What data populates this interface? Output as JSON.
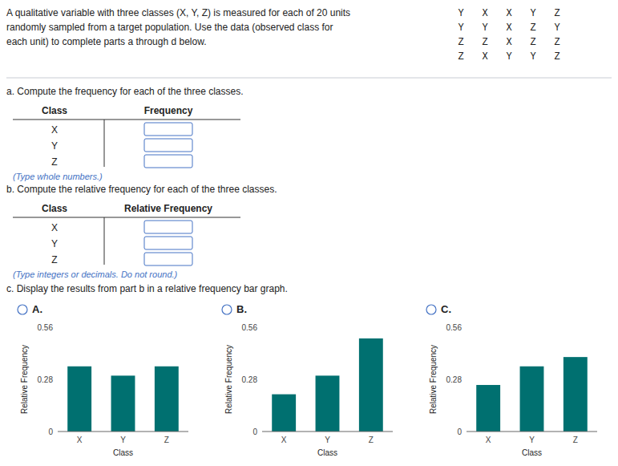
{
  "title": "A qualitative variable with three classes (X, Y, Z) is measured for each of 20 units\nrandomly sampled from a target population. Use the data (observed class for\neach unit) to complete parts a through d below.",
  "data_grid": [
    [
      "Y",
      "X",
      "X",
      "Y",
      "Z"
    ],
    [
      "Y",
      "Y",
      "X",
      "Z",
      "Y"
    ],
    [
      "Z",
      "Z",
      "X",
      "Z",
      "Z"
    ],
    [
      "Z",
      "X",
      "Y",
      "Y",
      "Z"
    ]
  ],
  "tables": [
    {
      "title": "a. Compute the frequency for each of the three classes.",
      "headers": [
        "Class",
        "Frequency"
      ],
      "rows": [
        "X",
        "Y",
        "Z"
      ],
      "note": "(Type whole numbers.)"
    },
    {
      "title": "b. Compute the relative frequency for each of the three classes.",
      "headers": [
        "Class",
        "Relative Frequency"
      ],
      "rows": [
        "X",
        "Y",
        "Z"
      ],
      "note": "(Type integers or decimals. Do not round.)"
    }
  ],
  "annotations": [
    "c. Display the results from part b in a relative frequency bar graph."
  ],
  "chart_data": [
    {
      "type": "bar",
      "title": "A.",
      "categories": [
        "X",
        "Y",
        "Z"
      ],
      "values": [
        0.35,
        0.3,
        0.35
      ],
      "color": "#007070",
      "xlabel": "Class",
      "ylabel": "Relative Frequency",
      "ylim": [
        0,
        0.56
      ],
      "yticks": [
        0,
        0.28,
        0.56
      ]
    },
    {
      "type": "bar",
      "title": "B.",
      "categories": [
        "X",
        "Y",
        "Z"
      ],
      "values": [
        0.2,
        0.3,
        0.5
      ],
      "color": "#007070",
      "xlabel": "Class",
      "ylabel": "Relative Frequency",
      "ylim": [
        0,
        0.56
      ],
      "yticks": [
        0,
        0.28,
        0.56
      ]
    },
    {
      "type": "bar",
      "title": "C.",
      "categories": [
        "X",
        "Y",
        "Z"
      ],
      "values": [
        0.25,
        0.35,
        0.4
      ],
      "color": "#007070",
      "xlabel": "Class",
      "ylabel": "Relative Frequency",
      "ylim": [
        0,
        0.56
      ],
      "yticks": [
        0,
        0.28,
        0.56
      ]
    }
  ]
}
